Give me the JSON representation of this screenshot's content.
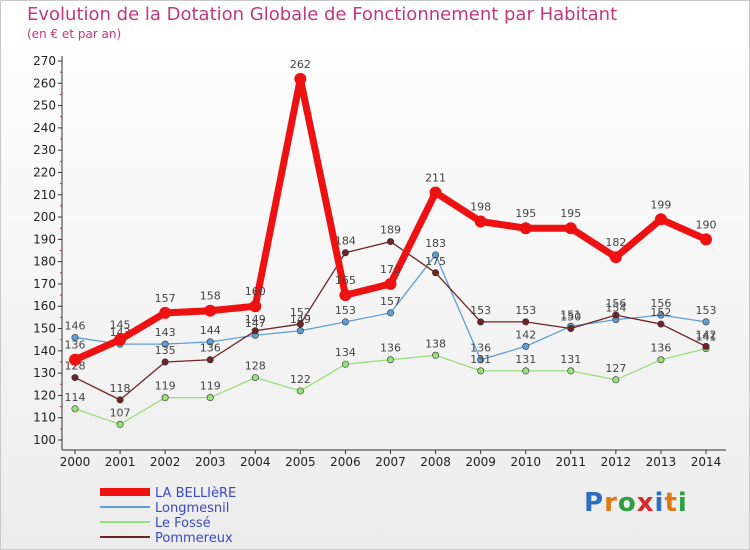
{
  "title": "Evolution de la Dotation Globale de Fonctionnement par Habitant",
  "subtitle": "(en € et par an)",
  "logo": {
    "text": "Proxiti",
    "letters": [
      "P",
      "r",
      "o",
      "x",
      "i",
      "t",
      "i"
    ],
    "colors": [
      "#2e6dc4",
      "#e07a10",
      "#2ea043",
      "#d62b2b",
      "#2e6dc4",
      "#e07a10",
      "#2ea043"
    ]
  },
  "chart_data": {
    "type": "line",
    "title": "Evolution de la Dotation Globale de Fonctionnement par Habitant",
    "ylabel": "(en € et par an)",
    "xlabel": "",
    "ylim": [
      100,
      270
    ],
    "ytick_step": 10,
    "x": [
      2000,
      2001,
      2002,
      2003,
      2004,
      2005,
      2006,
      2007,
      2008,
      2009,
      2010,
      2011,
      2012,
      2013,
      2014
    ],
    "series": [
      {
        "name": "LA BELLIèRE",
        "color": "#ee1111",
        "style": "bold",
        "values": [
          136,
          145,
          157,
          158,
          160,
          262,
          165,
          170,
          211,
          198,
          195,
          195,
          182,
          199,
          190
        ]
      },
      {
        "name": "Longmesnil",
        "color": "#5f9ed8",
        "style": "thin",
        "values": [
          146,
          143,
          143,
          144,
          147,
          149,
          153,
          157,
          183,
          136,
          142,
          151,
          154,
          156,
          153
        ]
      },
      {
        "name": "Le Fossé",
        "color": "#98e07a",
        "style": "thin",
        "values": [
          114,
          107,
          119,
          119,
          128,
          122,
          134,
          136,
          138,
          131,
          131,
          131,
          127,
          136,
          141
        ]
      },
      {
        "name": "Pommereux",
        "color": "#6e2427",
        "style": "thin",
        "values": [
          128,
          118,
          135,
          136,
          149,
          152,
          184,
          189,
          175,
          153,
          153,
          150,
          156,
          152,
          142
        ]
      }
    ],
    "grid": false,
    "legend": "bottom-left"
  }
}
